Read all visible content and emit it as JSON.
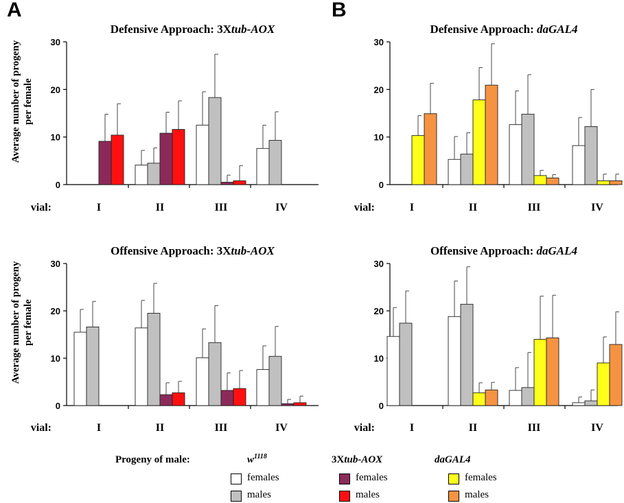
{
  "panel_labels": {
    "a": "A",
    "b": "B"
  },
  "ylabel_lines": [
    "Average number of progeny",
    "per female"
  ],
  "colors": {
    "w_females": "#ffffff",
    "w_males": "#c0c0c0",
    "aox_females": "#8b2a5a",
    "aox_males": "#ff1010",
    "da_females": "#ffff1a",
    "da_males": "#f59342"
  },
  "legend": {
    "title": "Progeny of male:",
    "groups": [
      {
        "name_parts": [
          {
            "t": "w",
            "i": true
          },
          {
            "t": "1118",
            "i": true,
            "sup": true
          }
        ],
        "items": [
          {
            "label": "females",
            "color_key": "w_females"
          },
          {
            "label": "males",
            "color_key": "w_males"
          }
        ]
      },
      {
        "name_parts": [
          {
            "t": "3X",
            "i": false
          },
          {
            "t": "tub-AOX",
            "i": true
          }
        ],
        "items": [
          {
            "label": "females",
            "color_key": "aox_females"
          },
          {
            "label": "males",
            "color_key": "aox_males"
          }
        ]
      },
      {
        "name_parts": [
          {
            "t": "daGAL4",
            "i": true
          }
        ],
        "items": [
          {
            "label": "females",
            "color_key": "da_females"
          },
          {
            "label": "males",
            "color_key": "da_males"
          }
        ]
      }
    ]
  },
  "chart_data": [
    {
      "type": "bar",
      "panel": "A",
      "title_parts": [
        {
          "t": "Defensive Approach: 3X",
          "i": false
        },
        {
          "t": "tub-AOX",
          "i": true
        }
      ],
      "x_prefix": "vial:",
      "categories": [
        "I",
        "II",
        "III",
        "IV"
      ],
      "ylim": [
        0,
        30
      ],
      "yticks": [
        0,
        10,
        20,
        30
      ],
      "bars": [
        {
          "cat": 0,
          "slot": 2,
          "color_key": "aox_females",
          "value": 9.1,
          "err": 5.7
        },
        {
          "cat": 0,
          "slot": 3,
          "color_key": "aox_males",
          "value": 10.4,
          "err": 6.6
        },
        {
          "cat": 1,
          "slot": 0,
          "color_key": "w_females",
          "value": 4.1,
          "err": 3.1
        },
        {
          "cat": 1,
          "slot": 1,
          "color_key": "w_males",
          "value": 4.5,
          "err": 3.2
        },
        {
          "cat": 1,
          "slot": 2,
          "color_key": "aox_females",
          "value": 10.8,
          "err": 4.4
        },
        {
          "cat": 1,
          "slot": 3,
          "color_key": "aox_males",
          "value": 11.6,
          "err": 6.0
        },
        {
          "cat": 2,
          "slot": 0,
          "color_key": "w_females",
          "value": 12.5,
          "err": 7.0
        },
        {
          "cat": 2,
          "slot": 1,
          "color_key": "w_males",
          "value": 18.3,
          "err": 9.1
        },
        {
          "cat": 2,
          "slot": 2,
          "color_key": "aox_females",
          "value": 0.5,
          "err": 1.5
        },
        {
          "cat": 2,
          "slot": 3,
          "color_key": "aox_males",
          "value": 0.8,
          "err": 3.2
        },
        {
          "cat": 3,
          "slot": 0,
          "color_key": "w_females",
          "value": 7.6,
          "err": 4.9
        },
        {
          "cat": 3,
          "slot": 1,
          "color_key": "w_males",
          "value": 9.3,
          "err": 6.0
        }
      ]
    },
    {
      "type": "bar",
      "panel": "B",
      "title_parts": [
        {
          "t": "Defensive Approach: ",
          "i": false
        },
        {
          "t": "daGAL4",
          "i": true
        }
      ],
      "x_prefix": "vial:",
      "categories": [
        "I",
        "II",
        "III",
        "IV"
      ],
      "ylim": [
        0,
        30
      ],
      "yticks": [
        0,
        10,
        20,
        30
      ],
      "bars": [
        {
          "cat": 0,
          "slot": 2,
          "color_key": "da_females",
          "value": 10.3,
          "err": 4.2
        },
        {
          "cat": 0,
          "slot": 3,
          "color_key": "da_males",
          "value": 14.9,
          "err": 6.4
        },
        {
          "cat": 1,
          "slot": 0,
          "color_key": "w_females",
          "value": 5.3,
          "err": 4.8
        },
        {
          "cat": 1,
          "slot": 1,
          "color_key": "w_males",
          "value": 6.4,
          "err": 4.5
        },
        {
          "cat": 1,
          "slot": 2,
          "color_key": "da_females",
          "value": 17.8,
          "err": 6.8
        },
        {
          "cat": 1,
          "slot": 3,
          "color_key": "da_males",
          "value": 20.9,
          "err": 8.7
        },
        {
          "cat": 2,
          "slot": 0,
          "color_key": "w_females",
          "value": 12.6,
          "err": 7.1
        },
        {
          "cat": 2,
          "slot": 1,
          "color_key": "w_males",
          "value": 14.8,
          "err": 8.3
        },
        {
          "cat": 2,
          "slot": 2,
          "color_key": "da_females",
          "value": 1.9,
          "err": 1.1
        },
        {
          "cat": 2,
          "slot": 3,
          "color_key": "da_males",
          "value": 1.4,
          "err": 0.7
        },
        {
          "cat": 3,
          "slot": 0,
          "color_key": "w_females",
          "value": 8.2,
          "err": 5.9
        },
        {
          "cat": 3,
          "slot": 1,
          "color_key": "w_males",
          "value": 12.2,
          "err": 7.8
        },
        {
          "cat": 3,
          "slot": 2,
          "color_key": "da_females",
          "value": 0.8,
          "err": 1.4
        },
        {
          "cat": 3,
          "slot": 3,
          "color_key": "da_males",
          "value": 0.8,
          "err": 1.4
        }
      ]
    },
    {
      "type": "bar",
      "panel": "A",
      "title_parts": [
        {
          "t": "Offensive Approach: 3X",
          "i": false
        },
        {
          "t": "tub-AOX",
          "i": true
        }
      ],
      "x_prefix": "vial:",
      "categories": [
        "I",
        "II",
        "III",
        "IV"
      ],
      "ylim": [
        0,
        30
      ],
      "yticks": [
        0,
        10,
        20,
        30
      ],
      "bars": [
        {
          "cat": 0,
          "slot": 0,
          "color_key": "w_females",
          "value": 15.5,
          "err": 4.8
        },
        {
          "cat": 0,
          "slot": 1,
          "color_key": "w_males",
          "value": 16.6,
          "err": 5.4
        },
        {
          "cat": 1,
          "slot": 0,
          "color_key": "w_females",
          "value": 16.4,
          "err": 5.8
        },
        {
          "cat": 1,
          "slot": 1,
          "color_key": "w_males",
          "value": 19.5,
          "err": 6.3
        },
        {
          "cat": 1,
          "slot": 2,
          "color_key": "aox_females",
          "value": 2.3,
          "err": 2.5
        },
        {
          "cat": 1,
          "slot": 3,
          "color_key": "aox_males",
          "value": 2.7,
          "err": 2.4
        },
        {
          "cat": 2,
          "slot": 0,
          "color_key": "w_females",
          "value": 10.1,
          "err": 6.1
        },
        {
          "cat": 2,
          "slot": 1,
          "color_key": "w_males",
          "value": 13.3,
          "err": 7.8
        },
        {
          "cat": 2,
          "slot": 2,
          "color_key": "aox_females",
          "value": 3.2,
          "err": 3.7
        },
        {
          "cat": 2,
          "slot": 3,
          "color_key": "aox_males",
          "value": 3.6,
          "err": 3.8
        },
        {
          "cat": 3,
          "slot": 0,
          "color_key": "w_females",
          "value": 7.6,
          "err": 5.0
        },
        {
          "cat": 3,
          "slot": 1,
          "color_key": "w_males",
          "value": 10.4,
          "err": 6.3
        },
        {
          "cat": 3,
          "slot": 2,
          "color_key": "aox_females",
          "value": 0.4,
          "err": 0.9
        },
        {
          "cat": 3,
          "slot": 3,
          "color_key": "aox_males",
          "value": 0.6,
          "err": 1.4
        }
      ]
    },
    {
      "type": "bar",
      "panel": "B",
      "title_parts": [
        {
          "t": "Offensive Approach: ",
          "i": false
        },
        {
          "t": "daGAL4",
          "i": true
        }
      ],
      "x_prefix": "vial:",
      "categories": [
        "I",
        "II",
        "III",
        "IV"
      ],
      "ylim": [
        0,
        30
      ],
      "yticks": [
        0,
        10,
        20,
        30
      ],
      "bars": [
        {
          "cat": 0,
          "slot": 0,
          "color_key": "w_females",
          "value": 14.6,
          "err": 6.1
        },
        {
          "cat": 0,
          "slot": 1,
          "color_key": "w_males",
          "value": 17.4,
          "err": 6.8
        },
        {
          "cat": 1,
          "slot": 0,
          "color_key": "w_females",
          "value": 18.8,
          "err": 7.5
        },
        {
          "cat": 1,
          "slot": 1,
          "color_key": "w_males",
          "value": 21.4,
          "err": 7.9
        },
        {
          "cat": 1,
          "slot": 2,
          "color_key": "da_females",
          "value": 2.7,
          "err": 2.1
        },
        {
          "cat": 1,
          "slot": 3,
          "color_key": "da_males",
          "value": 3.3,
          "err": 1.6
        },
        {
          "cat": 2,
          "slot": 0,
          "color_key": "w_females",
          "value": 3.2,
          "err": 4.8
        },
        {
          "cat": 2,
          "slot": 1,
          "color_key": "w_males",
          "value": 3.8,
          "err": 7.4
        },
        {
          "cat": 2,
          "slot": 2,
          "color_key": "da_females",
          "value": 14.0,
          "err": 9.1
        },
        {
          "cat": 2,
          "slot": 3,
          "color_key": "da_males",
          "value": 14.3,
          "err": 9.0
        },
        {
          "cat": 3,
          "slot": 0,
          "color_key": "w_females",
          "value": 0.6,
          "err": 1.2
        },
        {
          "cat": 3,
          "slot": 1,
          "color_key": "w_males",
          "value": 1.0,
          "err": 2.3
        },
        {
          "cat": 3,
          "slot": 2,
          "color_key": "da_females",
          "value": 9.0,
          "err": 5.5
        },
        {
          "cat": 3,
          "slot": 3,
          "color_key": "da_males",
          "value": 12.9,
          "err": 6.9
        }
      ]
    }
  ]
}
